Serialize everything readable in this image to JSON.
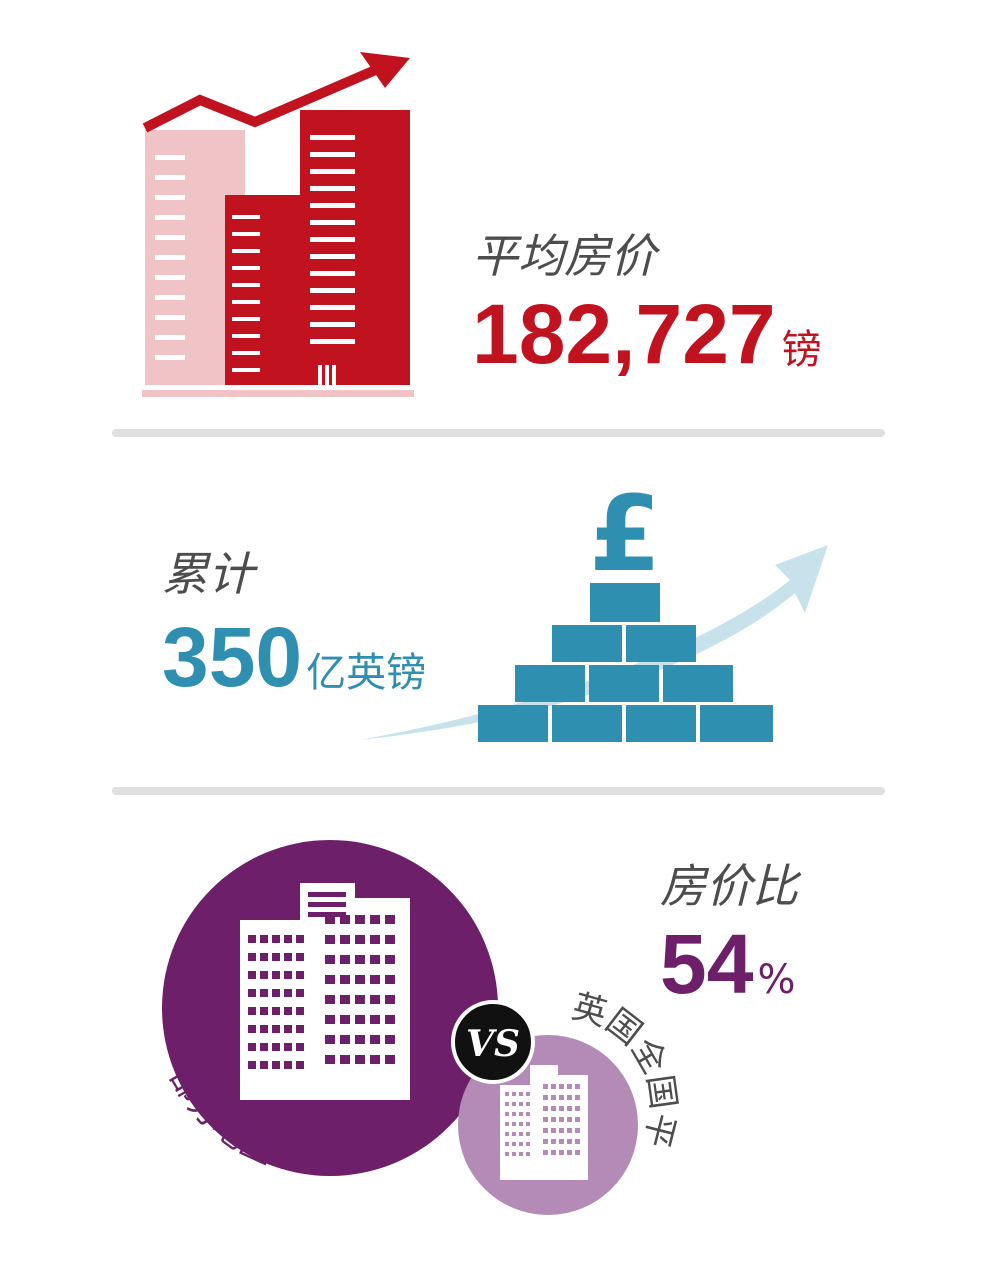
{
  "section1": {
    "label": "平均房价",
    "value": "182,727",
    "unit": "镑",
    "icon": "rising-buildings-icon",
    "color": "#c1121f",
    "color_light": "#f0c4c6"
  },
  "section2": {
    "label": "累计",
    "value": "350",
    "unit": "亿英镑",
    "icon": "pound-brick-pyramid-icon",
    "color": "#2f8fb0",
    "color_light": "#c8e2ec"
  },
  "section3": {
    "label": "房价比",
    "value": "54",
    "unit": "%",
    "vs_text": "VS",
    "left_circle_label": "部分地区",
    "right_circle_label": "英国全国平均",
    "color": "#6e1f6a",
    "color_light": "#b48ab6"
  }
}
